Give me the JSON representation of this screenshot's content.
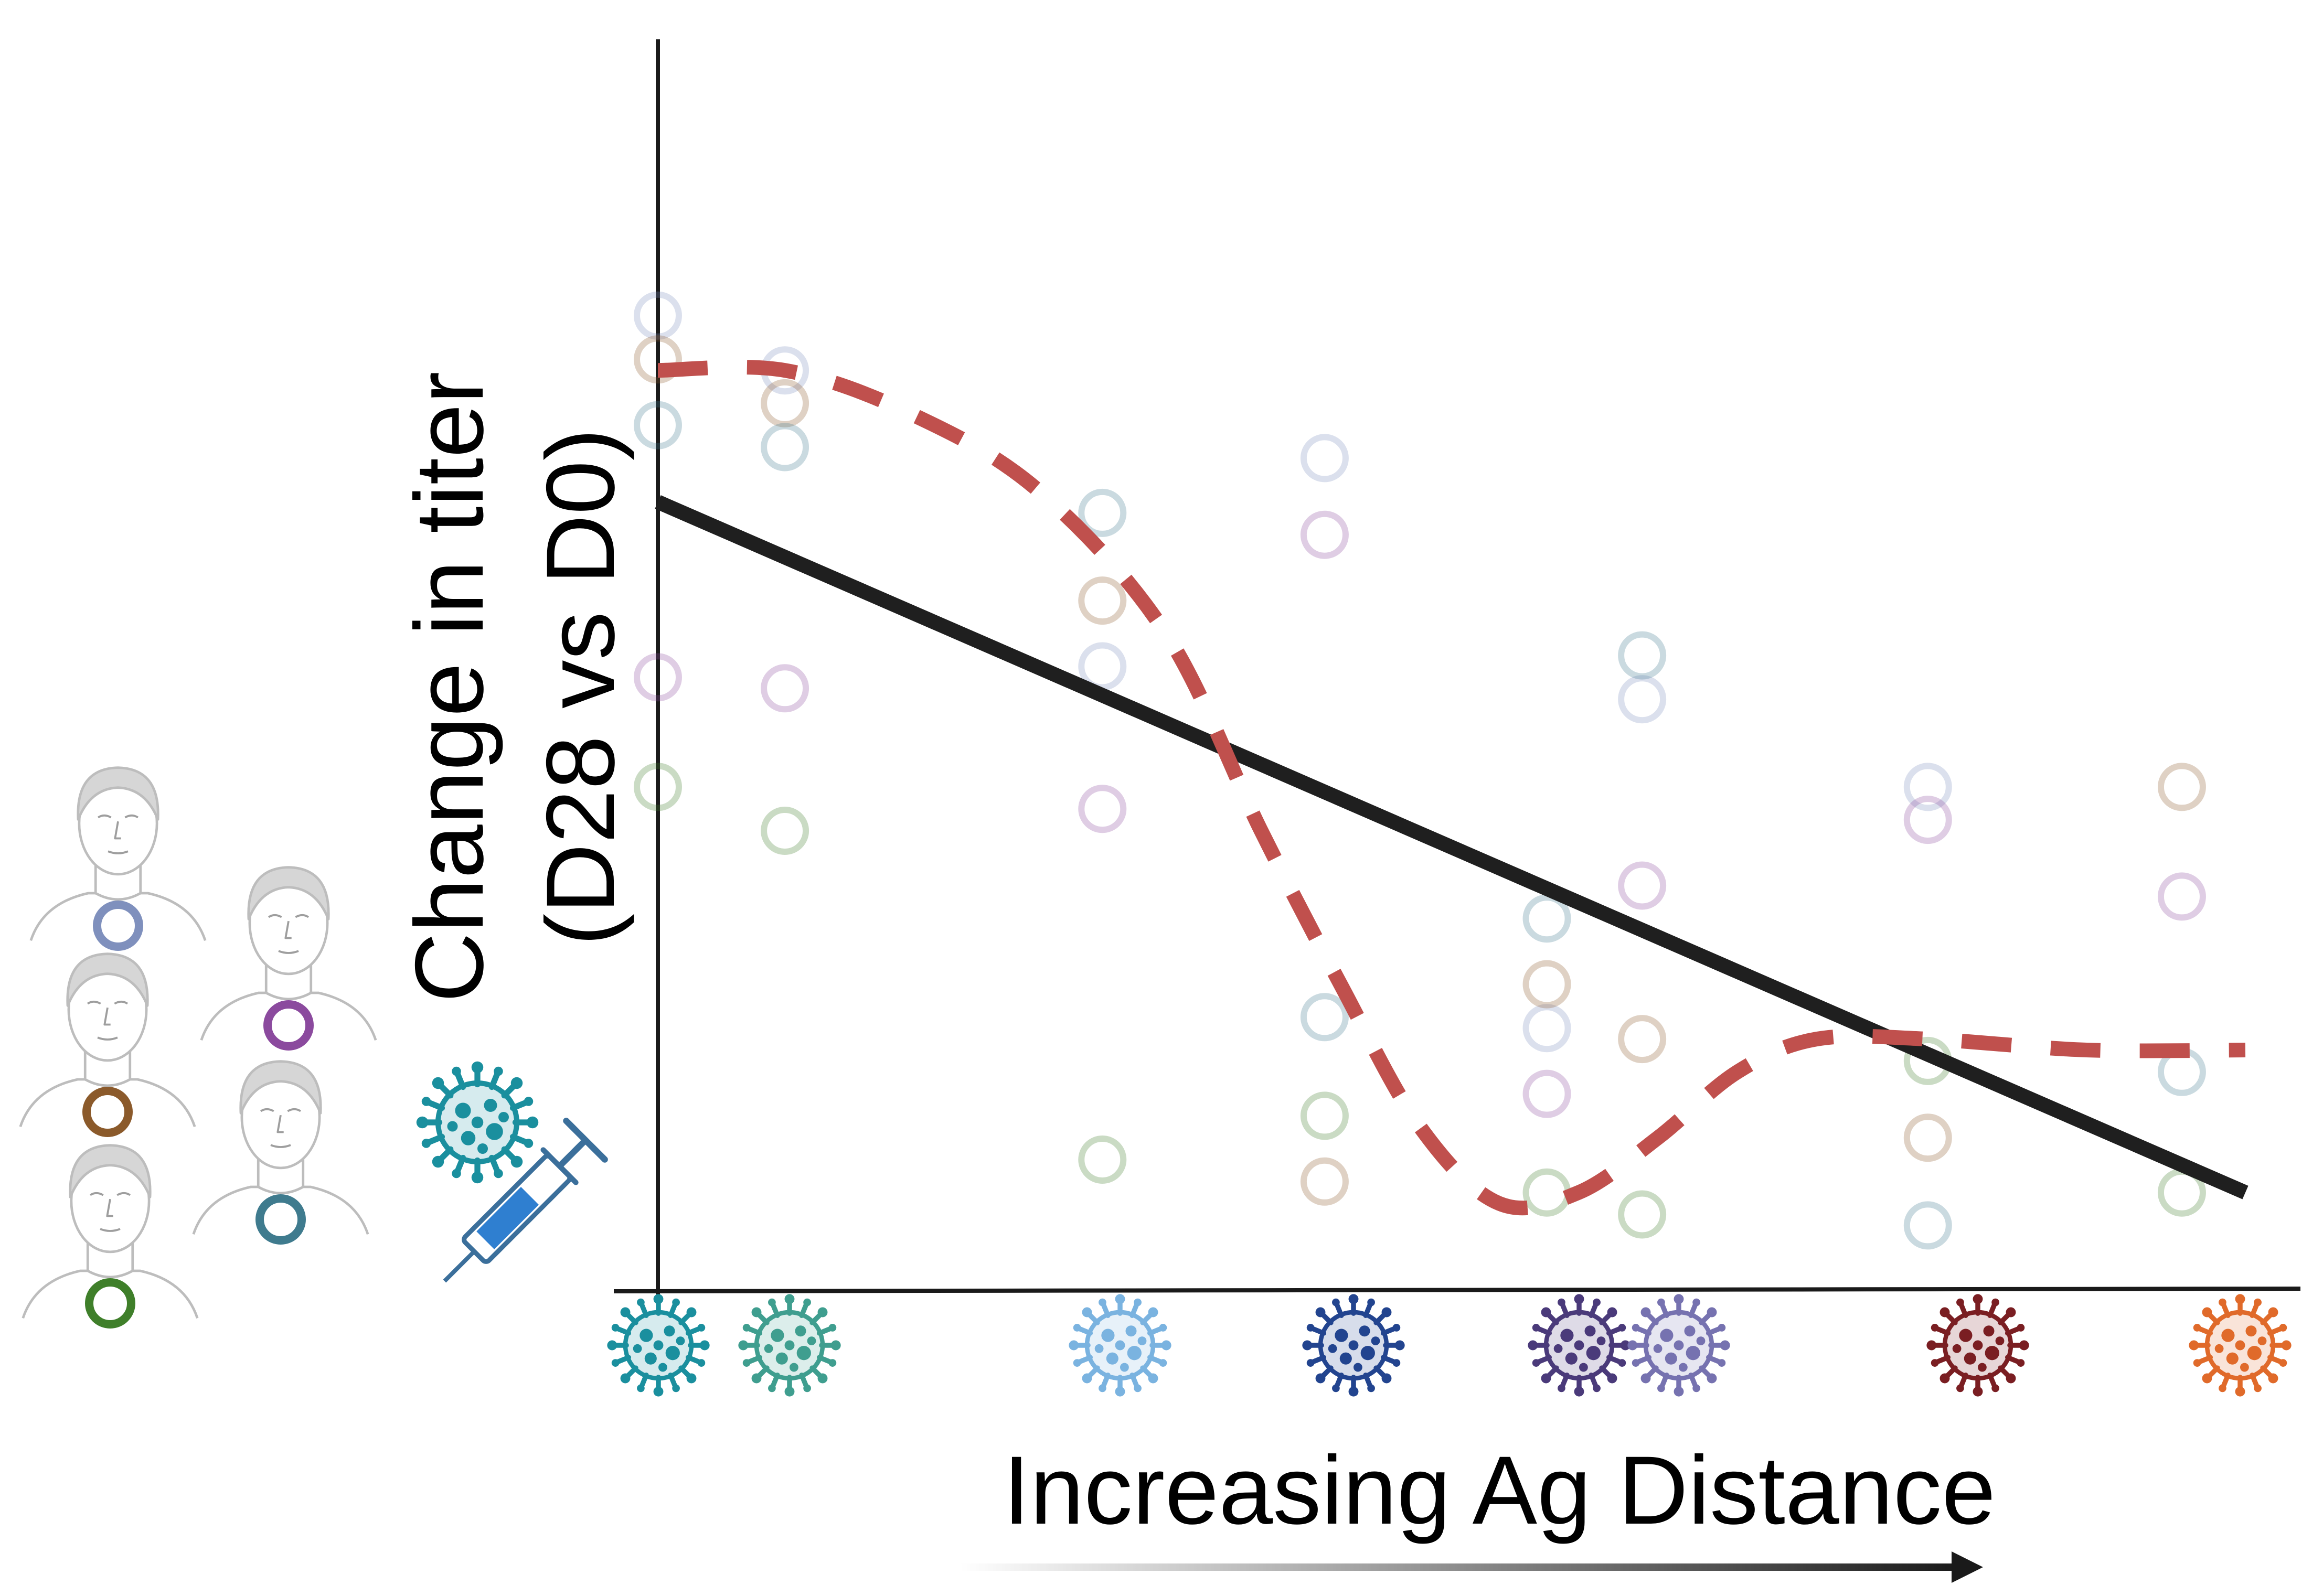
{
  "axes": {
    "y_label_line1": "Change in titer",
    "y_label_line2": "(D28 vs D0)",
    "x_label": "Increasing Ag Distance"
  },
  "colors": {
    "axis": "#1a1a1a",
    "trend_line": "#1f1f1f",
    "dashed_curve": "#c0504d",
    "person_outline": "#c2c2c2",
    "syringe": "#3b6f9b"
  },
  "participants": [
    {
      "id": "p1",
      "icon": "person-long-hair-icon",
      "color": "#7f90bd"
    },
    {
      "id": "p2",
      "icon": "person-short-hair-icon",
      "color": "#8b4a9e"
    },
    {
      "id": "p3",
      "icon": "person-curly-hair-icon",
      "color": "#8b5a2b"
    },
    {
      "id": "p4",
      "icon": "person-bob-hair-icon",
      "color": "#3f7b8e"
    },
    {
      "id": "p5",
      "icon": "person-short-hair-icon",
      "color": "#3f7f2a"
    }
  ],
  "vaccine": {
    "virus_color": "#1a8f9e",
    "icon": "syringe-icon"
  },
  "strains": [
    {
      "id": "s1",
      "color": "#1a8f9e"
    },
    {
      "id": "s2",
      "color": "#3f9e8f"
    },
    {
      "id": "s3",
      "color": "#7ab3e0"
    },
    {
      "id": "s4",
      "color": "#22448f"
    },
    {
      "id": "s5",
      "color": "#4a3a7a"
    },
    {
      "id": "s6",
      "color": "#7672b0"
    },
    {
      "id": "s7",
      "color": "#7a1e22"
    },
    {
      "id": "s8",
      "color": "#e06a2a"
    }
  ],
  "chart_data": {
    "type": "scatter",
    "title": "",
    "xlabel": "Increasing Ag Distance",
    "ylabel": "Change in titer (D28 vs D0)",
    "xlim": [
      0,
      10
    ],
    "ylim": [
      0,
      10
    ],
    "grid": false,
    "ticks_shown": false,
    "series": [
      {
        "participant": "p1",
        "color": "#7f90bd",
        "points": [
          [
            0.0,
            8.7
          ],
          [
            0.8,
            8.2
          ],
          [
            2.8,
            5.5
          ],
          [
            4.2,
            7.4
          ],
          [
            5.6,
            2.2
          ],
          [
            6.2,
            5.2
          ],
          [
            8.0,
            4.4
          ]
        ]
      },
      {
        "participant": "p2",
        "color": "#8b4a9e",
        "points": [
          [
            0.0,
            5.4
          ],
          [
            0.8,
            5.3
          ],
          [
            2.8,
            4.2
          ],
          [
            4.2,
            6.7
          ],
          [
            5.6,
            1.6
          ],
          [
            6.2,
            3.5
          ],
          [
            8.0,
            4.1
          ],
          [
            9.6,
            3.4
          ]
        ]
      },
      {
        "participant": "p3",
        "color": "#8b5a2b",
        "points": [
          [
            0.0,
            8.3
          ],
          [
            0.8,
            7.9
          ],
          [
            2.8,
            6.1
          ],
          [
            4.2,
            0.8
          ],
          [
            5.6,
            2.6
          ],
          [
            6.2,
            2.1
          ],
          [
            8.0,
            1.2
          ],
          [
            9.6,
            4.4
          ]
        ]
      },
      {
        "participant": "p4",
        "color": "#3f7b8e",
        "points": [
          [
            0.0,
            7.7
          ],
          [
            0.8,
            7.5
          ],
          [
            2.8,
            6.9
          ],
          [
            4.2,
            2.3
          ],
          [
            5.6,
            3.2
          ],
          [
            6.2,
            5.6
          ],
          [
            8.0,
            0.4
          ],
          [
            9.6,
            1.8
          ]
        ]
      },
      {
        "participant": "p5",
        "color": "#3f7f2a",
        "points": [
          [
            0.0,
            4.4
          ],
          [
            0.8,
            4.0
          ],
          [
            2.8,
            1.0
          ],
          [
            4.2,
            1.4
          ],
          [
            5.6,
            0.7
          ],
          [
            6.2,
            0.5
          ],
          [
            8.0,
            1.9
          ],
          [
            9.6,
            0.7
          ]
        ]
      }
    ],
    "overlays": [
      {
        "kind": "trend_line",
        "style": "solid",
        "color": "#1f1f1f",
        "points": [
          [
            0.0,
            7.0
          ],
          [
            10.0,
            0.7
          ]
        ]
      },
      {
        "kind": "fitted_curve",
        "style": "dashed",
        "color": "#c0504d",
        "points": [
          [
            0.0,
            8.2
          ],
          [
            0.8,
            8.2
          ],
          [
            1.6,
            7.8
          ],
          [
            2.4,
            7.1
          ],
          [
            3.2,
            5.8
          ],
          [
            3.8,
            4.0
          ],
          [
            4.3,
            2.6
          ],
          [
            4.8,
            1.3
          ],
          [
            5.3,
            0.6
          ],
          [
            5.8,
            0.7
          ],
          [
            6.3,
            1.2
          ],
          [
            6.8,
            1.8
          ],
          [
            7.3,
            2.1
          ],
          [
            8.0,
            2.1
          ],
          [
            9.0,
            2.0
          ],
          [
            10.0,
            2.0
          ]
        ]
      }
    ]
  }
}
